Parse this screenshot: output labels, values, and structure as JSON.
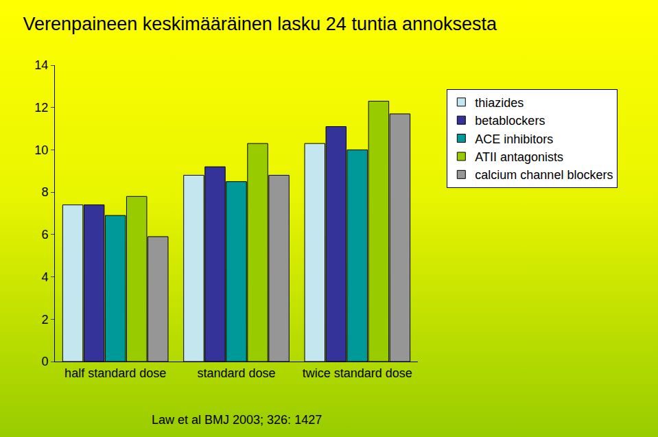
{
  "chart_data": {
    "type": "bar",
    "title": "Verenpaineen keskimääräinen lasku 24 tuntia annoksesta",
    "categories": [
      "half standard dose",
      "standard dose",
      "twice standard dose"
    ],
    "series": [
      {
        "name": "thiazides",
        "color": "#c4e6ee",
        "values": [
          7.4,
          8.8,
          10.3
        ]
      },
      {
        "name": "betablockers",
        "color": "#333399",
        "values": [
          7.4,
          9.2,
          11.1
        ]
      },
      {
        "name": "ACE inhibitors",
        "color": "#009999",
        "values": [
          6.9,
          8.5,
          10.0
        ]
      },
      {
        "name": "ATII antagonists",
        "color": "#99cc00",
        "values": [
          7.8,
          10.3,
          12.3
        ]
      },
      {
        "name": "calcium channel blockers",
        "color": "#969696",
        "values": [
          5.9,
          8.8,
          11.7
        ]
      }
    ],
    "ylim": [
      0,
      14
    ],
    "yticks": [
      0,
      2,
      4,
      6,
      8,
      10,
      12,
      14
    ],
    "grid": false,
    "legend": "right",
    "annotations": [
      "Law et al BMJ 2003; 326: 1427"
    ]
  }
}
